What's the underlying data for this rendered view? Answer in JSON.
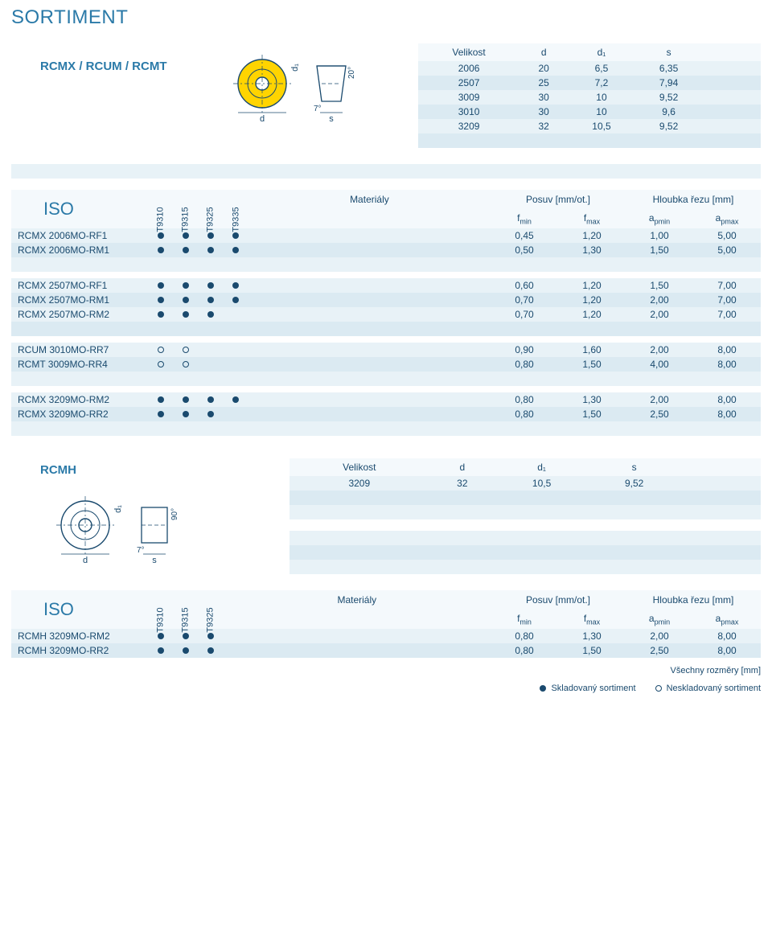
{
  "page_title": "SORTIMENT",
  "colors": {
    "accent": "#2b7aa8",
    "text": "#1a4a6e",
    "stripe_head": "#f4f9fc",
    "stripe_odd": "#e8f2f7",
    "stripe_even": "#dbeaf2",
    "insert_face": "#ffd400"
  },
  "shape1": {
    "label": "RCMX / RCUM / RCMT",
    "clearance_angle": "20°",
    "rake_angle": "7°",
    "size_table": {
      "headers": [
        "Velikost",
        "d",
        "d₁",
        "s",
        "",
        ""
      ],
      "rows": [
        [
          "2006",
          "20",
          "6,5",
          "6,35",
          "",
          ""
        ],
        [
          "2507",
          "25",
          "7,2",
          "7,94",
          "",
          ""
        ],
        [
          "3009",
          "30",
          "10",
          "9,52",
          "",
          ""
        ],
        [
          "3010",
          "30",
          "10",
          "9,6",
          "",
          ""
        ],
        [
          "3209",
          "32",
          "10,5",
          "9,52",
          "",
          ""
        ],
        [
          "",
          "",
          "",
          "",
          "",
          ""
        ]
      ]
    }
  },
  "iso1": {
    "label": "ISO",
    "section_headers": {
      "mat": "Materiály",
      "feed": "Posuv [mm/ot.]",
      "depth": "Hloubka řezu [mm]"
    },
    "grades": [
      "T9310",
      "T9315",
      "T9325",
      "T9335"
    ],
    "value_headers": [
      "f_min",
      "f_max",
      "a_pmin",
      "a_pmax"
    ],
    "groups": [
      [
        {
          "name": "RCMX 2006MO-RF1",
          "marks": [
            "f",
            "f",
            "f",
            "f"
          ],
          "vals": [
            "0,45",
            "1,20",
            "1,00",
            "5,00"
          ]
        },
        {
          "name": "RCMX 2006MO-RM1",
          "marks": [
            "f",
            "f",
            "f",
            "f"
          ],
          "vals": [
            "0,50",
            "1,30",
            "1,50",
            "5,00"
          ]
        },
        {
          "name": "",
          "marks": [
            "",
            "",
            "",
            ""
          ],
          "vals": [
            "",
            "",
            "",
            ""
          ]
        }
      ],
      [
        {
          "name": "RCMX 2507MO-RF1",
          "marks": [
            "f",
            "f",
            "f",
            "f"
          ],
          "vals": [
            "0,60",
            "1,20",
            "1,50",
            "7,00"
          ]
        },
        {
          "name": "RCMX 2507MO-RM1",
          "marks": [
            "f",
            "f",
            "f",
            "f"
          ],
          "vals": [
            "0,70",
            "1,20",
            "2,00",
            "7,00"
          ]
        },
        {
          "name": "RCMX 2507MO-RM2",
          "marks": [
            "f",
            "f",
            "f",
            ""
          ],
          "vals": [
            "0,70",
            "1,20",
            "2,00",
            "7,00"
          ]
        },
        {
          "name": "",
          "marks": [
            "",
            "",
            "",
            ""
          ],
          "vals": [
            "",
            "",
            "",
            ""
          ]
        }
      ],
      [
        {
          "name": "RCUM 3010MO-RR7",
          "marks": [
            "o",
            "o",
            "",
            ""
          ],
          "vals": [
            "0,90",
            "1,60",
            "2,00",
            "8,00"
          ]
        },
        {
          "name": "RCMT 3009MO-RR4",
          "marks": [
            "o",
            "o",
            "",
            ""
          ],
          "vals": [
            "0,80",
            "1,50",
            "4,00",
            "8,00"
          ]
        },
        {
          "name": "",
          "marks": [
            "",
            "",
            "",
            ""
          ],
          "vals": [
            "",
            "",
            "",
            ""
          ]
        }
      ],
      [
        {
          "name": "RCMX 3209MO-RM2",
          "marks": [
            "f",
            "f",
            "f",
            "f"
          ],
          "vals": [
            "0,80",
            "1,30",
            "2,00",
            "8,00"
          ]
        },
        {
          "name": "RCMX 3209MO-RR2",
          "marks": [
            "f",
            "f",
            "f",
            ""
          ],
          "vals": [
            "0,80",
            "1,50",
            "2,50",
            "8,00"
          ]
        },
        {
          "name": "",
          "marks": [
            "",
            "",
            "",
            ""
          ],
          "vals": [
            "",
            "",
            "",
            ""
          ]
        }
      ]
    ]
  },
  "shape2": {
    "label": "RCMH",
    "clearance_angle": "90°",
    "rake_angle": "7°",
    "size_table": {
      "headers": [
        "Velikost",
        "d",
        "d₁",
        "s",
        "",
        ""
      ],
      "rows": [
        [
          "3209",
          "32",
          "10,5",
          "9,52",
          "",
          ""
        ],
        [
          "",
          "",
          "",
          "",
          "",
          ""
        ],
        [
          "",
          "",
          "",
          "",
          "",
          ""
        ]
      ],
      "extra_rows": [
        [
          "",
          "",
          "",
          "",
          "",
          ""
        ],
        [
          "",
          "",
          "",
          "",
          "",
          ""
        ],
        [
          "",
          "",
          "",
          "",
          "",
          ""
        ]
      ]
    }
  },
  "iso2": {
    "label": "ISO",
    "section_headers": {
      "mat": "Materiály",
      "feed": "Posuv [mm/ot.]",
      "depth": "Hloubka řezu [mm]"
    },
    "grades": [
      "T9310",
      "T9315",
      "T9325"
    ],
    "value_headers": [
      "f_min",
      "f_max",
      "a_pmin",
      "a_pmax"
    ],
    "groups": [
      [
        {
          "name": "RCMH 3209MO-RM2",
          "marks": [
            "f",
            "f",
            "f"
          ],
          "vals": [
            "0,80",
            "1,30",
            "2,00",
            "8,00"
          ]
        },
        {
          "name": "RCMH 3209MO-RR2",
          "marks": [
            "f",
            "f",
            "f"
          ],
          "vals": [
            "0,80",
            "1,50",
            "2,50",
            "8,00"
          ]
        }
      ]
    ]
  },
  "footer": {
    "note": "Všechny rozměry [mm]",
    "legend_stocked": "Skladovaný sortiment",
    "legend_unstocked": "Neskladovaný sortiment"
  }
}
